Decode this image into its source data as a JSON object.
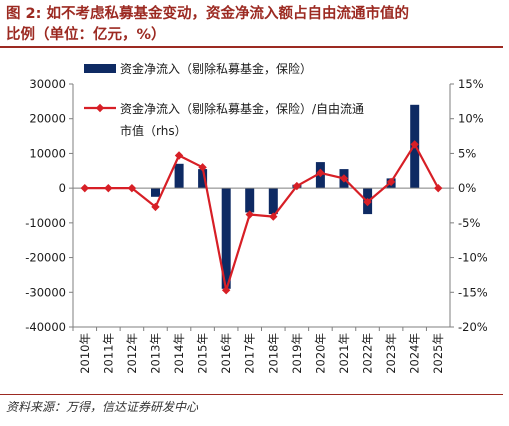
{
  "figure": {
    "title_line1": "图 2: 如不考虑私募基金变动，资金净流入额占自由流通市值的",
    "title_line2": "比例（单位：亿元，%）",
    "source": "资料来源：万得，信达证券研发中心"
  },
  "colors": {
    "title": "#9c2a22",
    "bar": "#0e2a63",
    "line": "#d71f26",
    "axis": "#7f7f7f"
  },
  "chart_data": {
    "type": "bar",
    "categories": [
      "2010年",
      "2011年",
      "2012年",
      "2013年",
      "2014年",
      "2015年",
      "2016年",
      "2017年",
      "2018年",
      "2019年",
      "2020年",
      "2021年",
      "2022年",
      "2023年",
      "2024年",
      "2025年"
    ],
    "series": [
      {
        "name": "资金净流入（剔除私募基金，保险）",
        "type": "bar",
        "axis": "left",
        "values": [
          0,
          0,
          0,
          -2500,
          7000,
          5500,
          -29000,
          -7000,
          -7500,
          1000,
          7500,
          5500,
          -7500,
          2800,
          24000,
          0
        ]
      },
      {
        "name_line1": "资金净流入（剔除私募基金，保险）/自由流通",
        "name_line2": "市值（rhs）",
        "type": "line",
        "axis": "right",
        "values": [
          0,
          0,
          0,
          -2.7,
          4.7,
          3.0,
          -14.7,
          -3.8,
          -4.1,
          0.3,
          2.2,
          1.4,
          -2.0,
          0.9,
          6.3,
          0
        ]
      }
    ],
    "yaxis_left": {
      "ticks": [
        "30000",
        "20000",
        "10000",
        "0",
        "-10000",
        "-20000",
        "-30000",
        "-40000"
      ],
      "ylim": [
        -40000,
        30000
      ]
    },
    "yaxis_right": {
      "ticks": [
        "15%",
        "10%",
        "5%",
        "0%",
        "-5%",
        "-10%",
        "-15%",
        "-20%"
      ],
      "ylim": [
        -20,
        15
      ]
    },
    "legend_position": "top",
    "grid": false
  }
}
